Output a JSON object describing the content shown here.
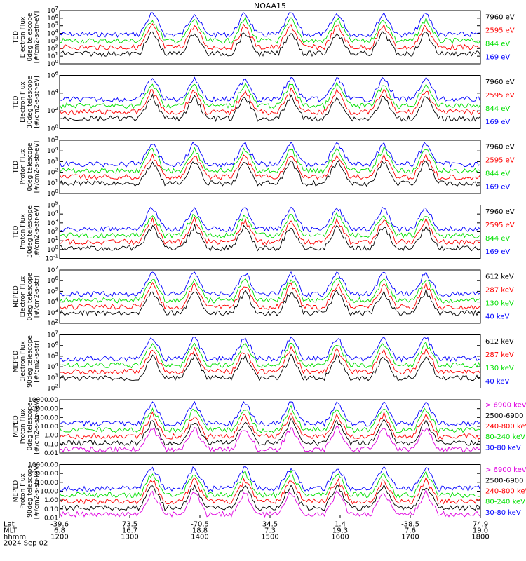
{
  "title": "NOAA15",
  "panels": [
    {
      "ylabel": [
        "TED",
        "Electron Flux",
        "0deg telescope",
        "[#/cm2-s-str-eV]"
      ],
      "yticks": [
        "10^7",
        "10^6",
        "10^5",
        "10^4",
        "10^3",
        "10^2",
        "10^1",
        "10^0"
      ],
      "legend": [
        {
          "text": "7960 eV",
          "color": "#000000"
        },
        {
          "text": "2595 eV",
          "color": "#ff0000"
        },
        {
          "text": "844 eV",
          "color": "#00e000"
        },
        {
          "text": "169 eV",
          "color": "#0000ff"
        }
      ]
    },
    {
      "ylabel": [
        "TED",
        "Electron Flux",
        "30deg telescope",
        "[#/cm2-s-str-eV]"
      ],
      "yticks": [
        "10^6",
        "10^4",
        "10^2",
        "10^0"
      ],
      "legend": [
        {
          "text": "7960 eV",
          "color": "#000000"
        },
        {
          "text": "2595 eV",
          "color": "#ff0000"
        },
        {
          "text": "844 eV",
          "color": "#00e000"
        },
        {
          "text": "169 eV",
          "color": "#0000ff"
        }
      ]
    },
    {
      "ylabel": [
        "TED",
        "Proton Flux",
        "0deg telescope",
        "[#/cm2-s-str-eV]"
      ],
      "yticks": [
        "10^5",
        "10^4",
        "10^3",
        "10^2",
        "10^1",
        "10^0"
      ],
      "legend": [
        {
          "text": "7960 eV",
          "color": "#000000"
        },
        {
          "text": "2595 eV",
          "color": "#ff0000"
        },
        {
          "text": "844 eV",
          "color": "#00e000"
        },
        {
          "text": "169 eV",
          "color": "#0000ff"
        }
      ]
    },
    {
      "ylabel": [
        "TED",
        "Proton Flux",
        "30deg telescope",
        "[#/cm2-s-str-eV]"
      ],
      "yticks": [
        "10^5",
        "10^4",
        "10^3",
        "10^2",
        "10^1",
        "10^0",
        "10^-1"
      ],
      "legend": [
        {
          "text": "7960 eV",
          "color": "#000000"
        },
        {
          "text": "2595 eV",
          "color": "#ff0000"
        },
        {
          "text": "844 eV",
          "color": "#00e000"
        },
        {
          "text": "169 eV",
          "color": "#0000ff"
        }
      ]
    },
    {
      "ylabel": [
        "MEPED",
        "Electron Flux",
        "0deg telescope",
        "[#/cm2-s-str]"
      ],
      "yticks": [
        "10^7",
        "10^6",
        "10^5",
        "10^4",
        "10^3",
        "10^2"
      ],
      "legend": [
        {
          "text": "612 keV",
          "color": "#000000"
        },
        {
          "text": "287 keV",
          "color": "#ff0000"
        },
        {
          "text": "130 keV",
          "color": "#00e000"
        },
        {
          "text": "40 keV",
          "color": "#0000ff"
        }
      ]
    },
    {
      "ylabel": [
        "MEPED",
        "Electron Flux",
        "90deg telescope",
        "[#/cm2-s-str]"
      ],
      "yticks": [
        "10^7",
        "10^6",
        "10^5",
        "10^4",
        "10^3",
        "10^2"
      ],
      "legend": [
        {
          "text": "612 keV",
          "color": "#000000"
        },
        {
          "text": "287 keV",
          "color": "#ff0000"
        },
        {
          "text": "130 keV",
          "color": "#00e000"
        },
        {
          "text": "40 keV",
          "color": "#0000ff"
        }
      ]
    },
    {
      "ylabel": [
        "MEPED",
        "Proton Flux",
        "0deg telescope",
        "[#/cm2-s-str-keV]"
      ],
      "yticks": [
        "10000.00",
        "1000.00",
        "100.00",
        "10.00",
        "1.00",
        "0.10",
        "0.01"
      ],
      "legend": [
        {
          "text": "> 6900 keV",
          "color": "#e000e0"
        },
        {
          "text": "2500-6900",
          "color": "#000000"
        },
        {
          "text": "240-800 keV",
          "color": "#ff0000"
        },
        {
          "text": "80-240 keV",
          "color": "#00e000"
        },
        {
          "text": "30-80 keV",
          "color": "#0000ff"
        }
      ]
    },
    {
      "ylabel": [
        "MEPED",
        "Proton Flux",
        "90deg telescope",
        "[#/cm2-s-str-keV]"
      ],
      "yticks": [
        "10000.00",
        "1000.00",
        "100.00",
        "10.00",
        "1.00",
        "0.10",
        "0.01"
      ],
      "legend": [
        {
          "text": "> 6900 keV",
          "color": "#e000e0"
        },
        {
          "text": "2500-6900",
          "color": "#000000"
        },
        {
          "text": "240-800 keV",
          "color": "#ff0000"
        },
        {
          "text": "80-240 keV",
          "color": "#00e000"
        },
        {
          "text": "30-80 keV",
          "color": "#0000ff"
        }
      ]
    }
  ],
  "xaxis": {
    "row_labels": [
      "Lat",
      "MLT",
      "hhmm"
    ],
    "columns": [
      {
        "lat": "-39.6",
        "mlt": "6.8",
        "hhmm": "1200"
      },
      {
        "lat": "73.5",
        "mlt": "16.7",
        "hhmm": "1300"
      },
      {
        "lat": "-70.5",
        "mlt": "18.8",
        "hhmm": "1400"
      },
      {
        "lat": "34.5",
        "mlt": "7.3",
        "hhmm": "1500"
      },
      {
        "lat": "1.4",
        "mlt": "19.3",
        "hhmm": "1600"
      },
      {
        "lat": "-38.5",
        "mlt": "7.6",
        "hhmm": "1700"
      },
      {
        "lat": "74.9",
        "mlt": "19.0",
        "hhmm": "1800"
      }
    ],
    "date": "2024 Sep 02"
  },
  "chart_data": {
    "type": "line",
    "title": "NOAA15",
    "x_range": [
      "1200",
      "1800"
    ],
    "xlabel_rows": [
      "Lat",
      "MLT",
      "hhmm"
    ],
    "date": "2024 Sep 02",
    "grid": false,
    "legend_placement": "right",
    "panel_count": 8
  }
}
